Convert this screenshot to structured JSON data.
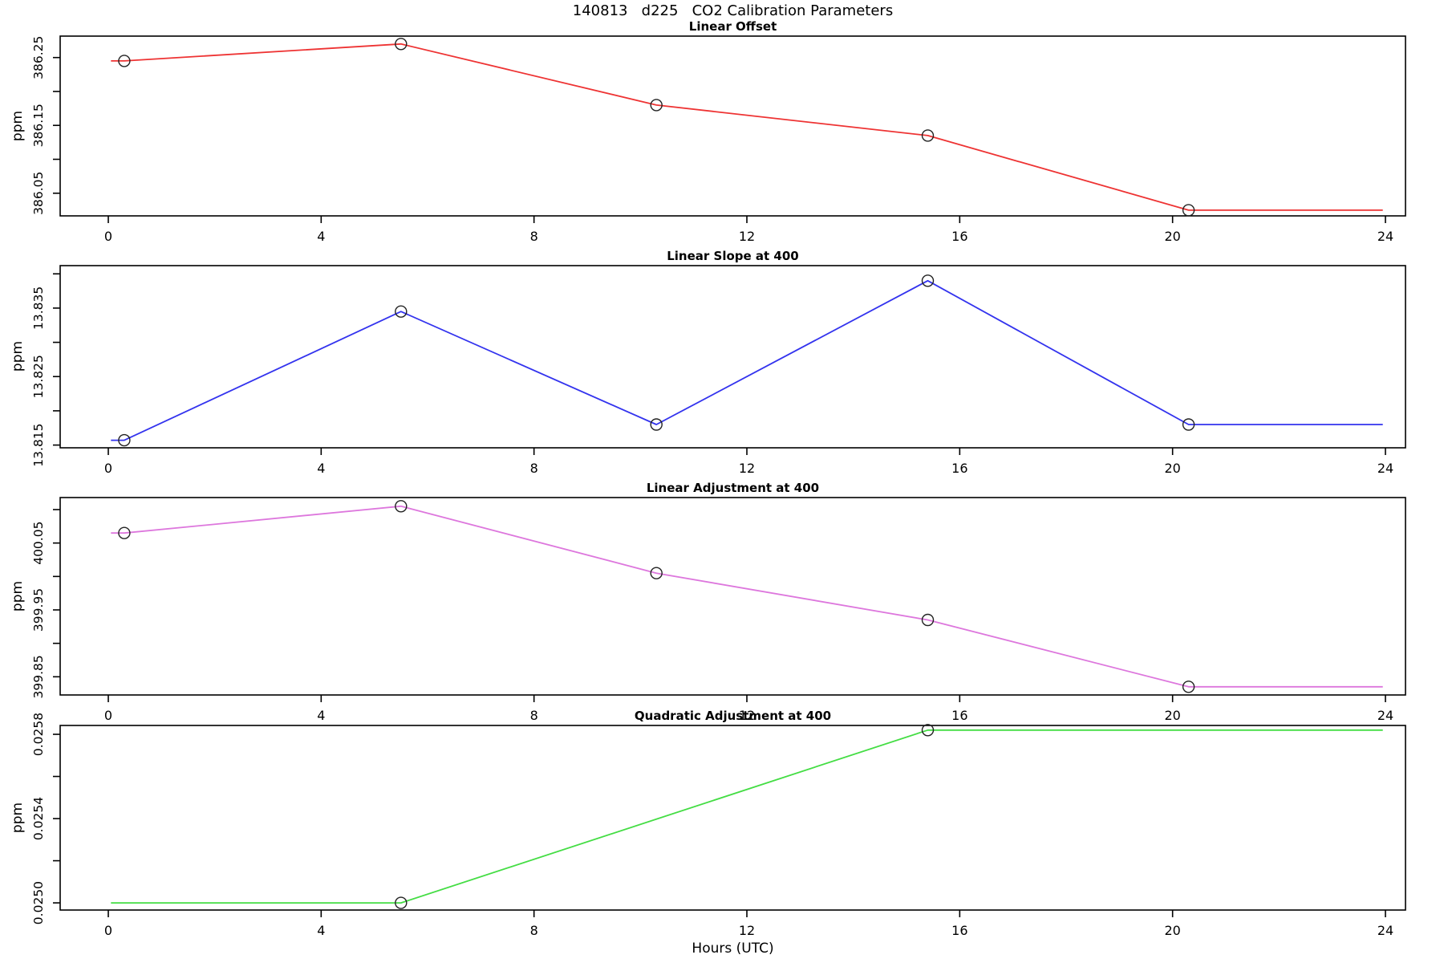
{
  "page": {
    "title": "140813   d225   CO2 Calibration Parameters",
    "xlabel": "Hours (UTC)"
  },
  "chart_data": [
    {
      "type": "line",
      "title": "Linear Offset",
      "ylabel": "ppm",
      "color": "#ee3333",
      "x": [
        0.05,
        0.3,
        5.5,
        10.3,
        15.4,
        20.3,
        23.95
      ],
      "y": [
        386.245,
        386.245,
        386.27,
        386.18,
        386.135,
        386.025,
        386.025
      ],
      "markers": [
        false,
        true,
        true,
        true,
        true,
        true,
        false
      ],
      "ylim": [
        386.0166,
        386.2816
      ],
      "yticks": [
        {
          "v": 386.05,
          "label": "386.05"
        },
        {
          "v": 386.1,
          "label": ""
        },
        {
          "v": 386.15,
          "label": "386.15"
        },
        {
          "v": 386.2,
          "label": ""
        },
        {
          "v": 386.25,
          "label": "386.25"
        }
      ],
      "xticks": [
        0,
        4,
        8,
        12,
        16,
        20,
        24
      ],
      "xlim": [
        0,
        24
      ],
      "grid": false,
      "legend": "none"
    },
    {
      "type": "line",
      "title": "Linear Slope at 400",
      "ylabel": "ppm",
      "color": "#3333ee",
      "x": [
        0.05,
        0.3,
        5.5,
        10.3,
        15.4,
        20.3,
        23.95
      ],
      "y": [
        13.8157,
        13.8157,
        13.8345,
        13.818,
        13.839,
        13.818,
        13.818
      ],
      "markers": [
        false,
        true,
        true,
        true,
        true,
        true,
        false
      ],
      "ylim": [
        13.8146,
        13.8412
      ],
      "yticks": [
        {
          "v": 13.815,
          "label": "13.815"
        },
        {
          "v": 13.82,
          "label": ""
        },
        {
          "v": 13.825,
          "label": "13.825"
        },
        {
          "v": 13.83,
          "label": ""
        },
        {
          "v": 13.835,
          "label": "13.835"
        },
        {
          "v": 13.84,
          "label": ""
        }
      ],
      "xticks": [
        0,
        4,
        8,
        12,
        16,
        20,
        24
      ],
      "xlim": [
        0,
        24
      ],
      "grid": false,
      "legend": "none"
    },
    {
      "type": "line",
      "title": "Linear Adjustment at 400",
      "ylabel": "ppm",
      "color": "#dd77dd",
      "x": [
        0.05,
        0.3,
        5.5,
        10.3,
        15.4,
        20.3,
        23.95
      ],
      "y": [
        400.065,
        400.065,
        400.105,
        400.005,
        399.935,
        399.835,
        399.835
      ],
      "markers": [
        false,
        true,
        true,
        true,
        true,
        true,
        false
      ],
      "ylim": [
        399.8228,
        400.118
      ],
      "yticks": [
        {
          "v": 399.85,
          "label": "399.85"
        },
        {
          "v": 399.9,
          "label": ""
        },
        {
          "v": 399.95,
          "label": "399.95"
        },
        {
          "v": 400.0,
          "label": ""
        },
        {
          "v": 400.05,
          "label": "400.05"
        },
        {
          "v": 400.1,
          "label": ""
        }
      ],
      "xticks": [
        0,
        4,
        8,
        12,
        16,
        20,
        24
      ],
      "xlim": [
        0,
        24
      ],
      "grid": false,
      "legend": "none"
    },
    {
      "type": "line",
      "title": "Quadratic Adjustment at 400",
      "ylabel": "ppm",
      "color": "#44dd44",
      "x": [
        0.05,
        5.5,
        15.4,
        23.95
      ],
      "y": [
        0.025,
        0.025,
        0.02582,
        0.02582
      ],
      "markers": [
        false,
        true,
        true,
        false
      ],
      "ylim": [
        0.024966,
        0.025842
      ],
      "yticks": [
        {
          "v": 0.025,
          "label": "0.0250"
        },
        {
          "v": 0.0252,
          "label": ""
        },
        {
          "v": 0.0254,
          "label": "0.0254"
        },
        {
          "v": 0.0256,
          "label": ""
        },
        {
          "v": 0.0258,
          "label": "0.0258"
        }
      ],
      "xticks": [
        0,
        4,
        8,
        12,
        16,
        20,
        24
      ],
      "xlim": [
        0,
        24
      ],
      "grid": false,
      "legend": "none"
    }
  ]
}
